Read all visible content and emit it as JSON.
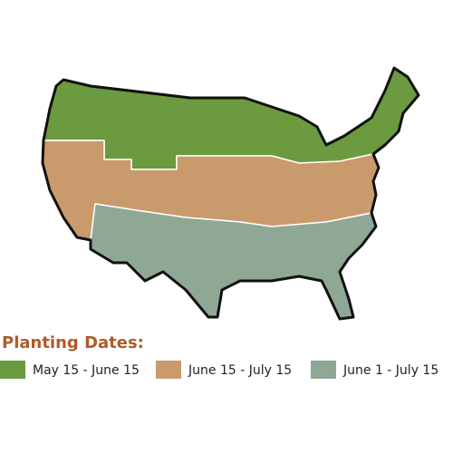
{
  "legend": {
    "title": "Planting Dates:",
    "items": [
      {
        "label": "May 15 - June 15",
        "color": "#6b9a3f"
      },
      {
        "label": "June 15 - July 15",
        "color": "#c99a6b"
      },
      {
        "label": "June 1 - July 15",
        "color": "#8fa896"
      }
    ]
  }
}
